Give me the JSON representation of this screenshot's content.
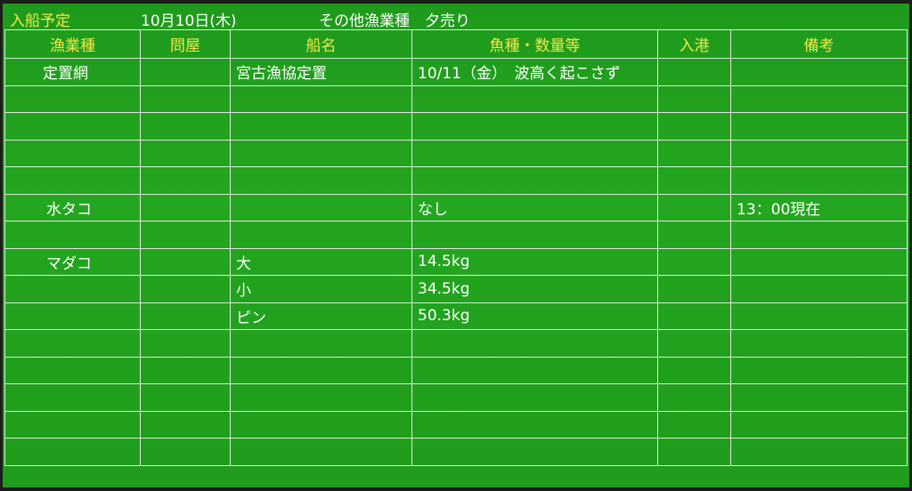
{
  "title": {
    "label": "入船予定",
    "date": "10月10日(木)",
    "subtitle": "その他漁業種　夕売り"
  },
  "columns": [
    "漁業種",
    "問屋",
    "船名",
    "魚種・数量等",
    "入港",
    "備考"
  ],
  "rows": [
    [
      "定置網",
      "",
      "宮古漁協定置",
      "10/11（金）　波高く起こさず",
      "",
      ""
    ],
    [
      "",
      "",
      "",
      "",
      "",
      ""
    ],
    [
      "",
      "",
      "",
      "",
      "",
      ""
    ],
    [
      "",
      "",
      "",
      "",
      "",
      ""
    ],
    [
      "",
      "",
      "",
      "",
      "",
      ""
    ],
    [
      "水タコ",
      "",
      "",
      "なし",
      "",
      "13：00現在"
    ],
    [
      "",
      "",
      "",
      "",
      "",
      ""
    ],
    [
      "マダコ",
      "",
      "大",
      "14.5kg",
      "",
      ""
    ],
    [
      "",
      "",
      "小",
      "34.5kg",
      "",
      ""
    ],
    [
      "",
      "",
      "ピン",
      "50.3kg",
      "",
      ""
    ],
    [
      "",
      "",
      "",
      "",
      "",
      ""
    ],
    [
      "",
      "",
      "",
      "",
      "",
      ""
    ],
    [
      "",
      "",
      "",
      "",
      "",
      ""
    ],
    [
      "",
      "",
      "",
      "",
      "",
      ""
    ],
    [
      "",
      "",
      "",
      "",
      "",
      ""
    ]
  ],
  "colors": {
    "board": "#24a620",
    "header_text": "#f2e84a",
    "text": "#ffffff",
    "grid": "#dfe8dc"
  }
}
